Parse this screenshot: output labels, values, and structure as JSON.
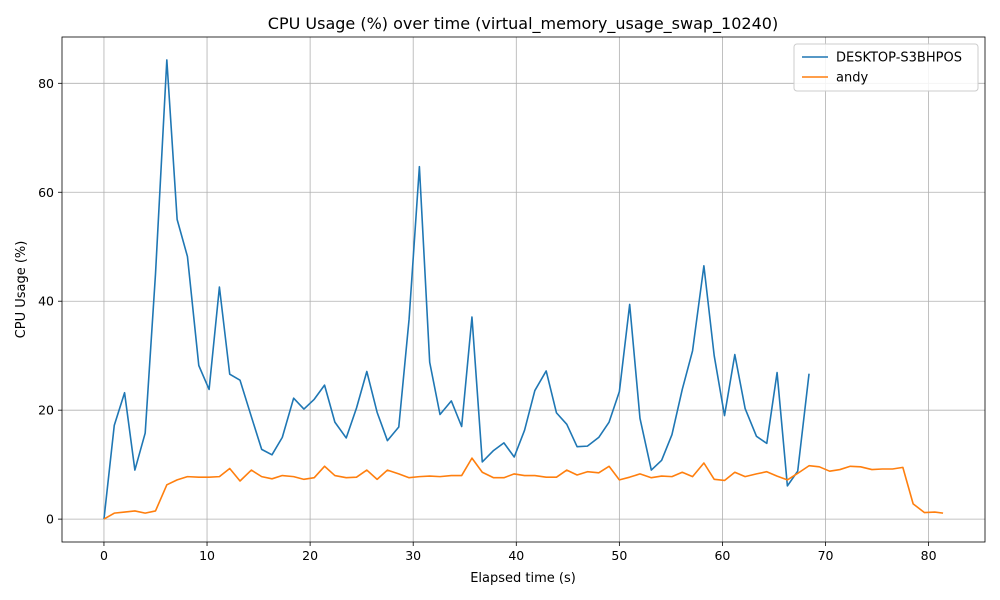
{
  "chart_data": {
    "type": "line",
    "title": "CPU Usage (%) over time (virtual_memory_usage_swap_10240)",
    "xlabel": "Elapsed time (s)",
    "ylabel": "CPU Usage (%)",
    "xlim": [
      -4.07,
      85.47
    ],
    "ylim": [
      -4.2,
      88.5
    ],
    "xticks": [
      0,
      10,
      20,
      30,
      40,
      50,
      60,
      70,
      80
    ],
    "yticks": [
      0,
      20,
      40,
      60,
      80
    ],
    "grid": true,
    "legend_position": "top-right",
    "series": [
      {
        "name": "DESKTOP-S3BHPOS",
        "color": "#1f77b4",
        "x": [
          0,
          1,
          2,
          3,
          4,
          5,
          6.1,
          7.1,
          8.1,
          9.2,
          10.2,
          11.2,
          12.2,
          13.2,
          14.3,
          15.3,
          16.3,
          17.3,
          18.4,
          19.4,
          20.4,
          21.4,
          22.4,
          23.5,
          24.5,
          25.5,
          26.5,
          27.5,
          28.6,
          29.6,
          30.6,
          31.6,
          32.6,
          33.7,
          34.7,
          35.7,
          36.7,
          37.8,
          38.8,
          39.8,
          40.8,
          41.8,
          42.9,
          43.9,
          44.9,
          45.9,
          46.9,
          48,
          49,
          50,
          51,
          52,
          53.1,
          54.1,
          55.1,
          56.1,
          57.1,
          58.2,
          59.2,
          60.2,
          61.2,
          62.2,
          63.3,
          64.3,
          65.3,
          66.3,
          67.3,
          68.4
        ],
        "y": [
          0,
          17.2,
          23.2,
          9,
          15.8,
          45,
          84.3,
          55,
          48.2,
          28.2,
          23.8,
          42.6,
          26.6,
          25.5,
          18.8,
          12.8,
          11.8,
          15,
          22.2,
          20.2,
          22,
          24.6,
          17.8,
          14.9,
          20.4,
          27.1,
          19.6,
          14.4,
          16.9,
          36.7,
          64.7,
          28.8,
          19.2,
          21.7,
          17,
          37.1,
          10.5,
          12.6,
          14,
          11.4,
          16.3,
          23.6,
          27.2,
          19.5,
          17.4,
          13.3,
          13.4,
          15,
          17.8,
          23.4,
          39.4,
          18.5,
          9,
          10.8,
          15.5,
          23.8,
          30.9,
          46.5,
          30,
          19,
          30.2,
          20.3,
          15.2,
          13.9,
          26.9,
          6.1,
          8.8,
          26.7
        ]
      },
      {
        "name": "andy",
        "color": "#ff7f0e",
        "x": [
          0,
          1,
          2,
          3,
          4,
          5,
          6.1,
          7.1,
          8.1,
          9.2,
          10.2,
          11.2,
          12.2,
          13.2,
          14.3,
          15.3,
          16.3,
          17.3,
          18.4,
          19.4,
          20.4,
          21.4,
          22.4,
          23.5,
          24.5,
          25.5,
          26.5,
          27.5,
          28.6,
          29.6,
          30.6,
          31.6,
          32.6,
          33.7,
          34.7,
          35.7,
          36.7,
          37.8,
          38.8,
          39.8,
          40.8,
          41.8,
          42.9,
          43.9,
          44.9,
          45.9,
          46.9,
          48,
          49,
          50,
          51,
          52,
          53.1,
          54.1,
          55.1,
          56.1,
          57.1,
          58.2,
          59.2,
          60.2,
          61.2,
          62.2,
          63.3,
          64.3,
          65.3,
          66.3,
          67.3,
          68.4,
          69.4,
          70.4,
          71.4,
          72.4,
          73.4,
          74.5,
          75.5,
          76.5,
          77.5,
          78.5,
          79.6,
          80.6,
          81.4
        ],
        "y": [
          0,
          1.1,
          1.3,
          1.5,
          1.1,
          1.5,
          6.3,
          7.2,
          7.8,
          7.7,
          7.7,
          7.8,
          9.3,
          7,
          9,
          7.8,
          7.4,
          8,
          7.8,
          7.3,
          7.6,
          9.7,
          8,
          7.6,
          7.7,
          9,
          7.3,
          9,
          8.3,
          7.6,
          7.8,
          7.9,
          7.8,
          8,
          8,
          11.2,
          8.6,
          7.6,
          7.6,
          8.3,
          8,
          8,
          7.7,
          7.7,
          9,
          8.1,
          8.7,
          8.5,
          9.7,
          7.2,
          7.7,
          8.3,
          7.6,
          7.9,
          7.8,
          8.6,
          7.8,
          10.3,
          7.3,
          7.1,
          8.6,
          7.8,
          8.3,
          8.7,
          7.9,
          7.2,
          8.4,
          9.8,
          9.6,
          8.8,
          9.1,
          9.7,
          9.6,
          9.1,
          9.2,
          9.2,
          9.5,
          2.8,
          1.2,
          1.3,
          1.1
        ]
      }
    ]
  }
}
